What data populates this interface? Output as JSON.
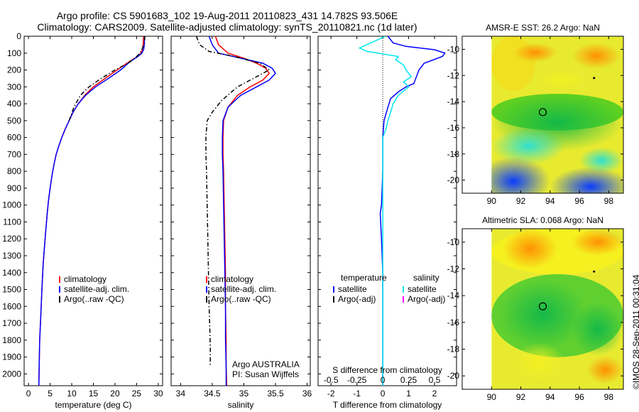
{
  "title": {
    "line1": "Argo profile: CS 5901683_102 19-Aug-2011 20110823_431 14.782S 93.506E",
    "line2": "Climatology: CARS2009. Satellite-adjusted climatology: synTS_20110821.nc (1d later)"
  },
  "stamp": "©IMOS 28-Sep-2011 00:31:04",
  "colors": {
    "climatology": "#ff0000",
    "satellite": "#0000ff",
    "argo": "#000000",
    "sal_satellite": "#00e5ee",
    "sal_argo": "#ff00ff"
  },
  "y_axis": {
    "ticks": [
      0,
      100,
      200,
      300,
      400,
      500,
      600,
      700,
      800,
      900,
      1000,
      1100,
      1200,
      1300,
      1400,
      1500,
      1600,
      1700,
      1800,
      1900,
      2000
    ],
    "ylim": [
      0,
      2070
    ]
  },
  "chart_data": [
    {
      "type": "line",
      "id": "temperature",
      "xlabel": "temperature (deg C)",
      "xlim": [
        -1,
        31
      ],
      "xticks": [
        "0",
        "5",
        "10",
        "15",
        "20",
        "25",
        "30"
      ],
      "xtick_values": [
        0,
        5,
        10,
        15,
        20,
        25,
        30
      ],
      "legend": [
        "climatology",
        "satellite-adj. clim.",
        "Argo(..raw -QC)"
      ],
      "series": [
        {
          "name": "climatology",
          "color": "#ff0000",
          "style": "solid",
          "x": [
            26.6,
            26.5,
            26.3,
            26.0,
            25.2,
            23.3,
            20.5,
            17.7,
            15.0,
            13.0,
            11.5,
            10.3,
            9.4,
            8.5,
            7.7,
            7.0,
            6.4,
            5.9,
            5.4,
            5.0,
            4.6,
            4.3,
            4.0,
            3.7,
            3.4,
            3.2,
            3.0,
            2.8,
            2.6,
            2.5,
            2.4
          ],
          "y": [
            0,
            50,
            80,
            100,
            120,
            150,
            200,
            250,
            300,
            350,
            400,
            450,
            500,
            550,
            600,
            650,
            700,
            760,
            830,
            900,
            980,
            1060,
            1150,
            1250,
            1350,
            1450,
            1560,
            1680,
            1800,
            1930,
            2070
          ]
        },
        {
          "name": "satellite-adj. clim.",
          "color": "#0000ff",
          "style": "solid",
          "x": [
            26.8,
            26.8,
            26.6,
            26.2,
            25.3,
            23.5,
            21.3,
            18.5,
            15.5,
            13.2,
            11.5,
            10.3,
            9.4,
            8.5,
            7.7,
            7.0,
            6.4,
            5.9,
            5.4,
            5.0,
            4.6,
            4.3,
            4.0,
            3.7,
            3.4,
            3.2,
            3.0,
            2.8,
            2.6,
            2.5,
            2.4
          ],
          "y": [
            0,
            50,
            80,
            100,
            120,
            150,
            200,
            250,
            300,
            350,
            400,
            450,
            500,
            550,
            600,
            650,
            700,
            760,
            830,
            900,
            980,
            1060,
            1150,
            1250,
            1350,
            1450,
            1560,
            1680,
            1800,
            1930,
            2070
          ]
        },
        {
          "name": "Argo(..raw -QC)",
          "color": "#000000",
          "style": "dashdot",
          "x": [
            26.9,
            26.8,
            26.5,
            26.2,
            25.8,
            24.6,
            23.0,
            20.0,
            16.8,
            14.0,
            12.0,
            10.5,
            9.4
          ],
          "y": [
            0,
            40,
            60,
            80,
            100,
            130,
            160,
            200,
            250,
            300,
            350,
            420,
            500
          ]
        }
      ]
    },
    {
      "type": "line",
      "id": "salinity",
      "xlabel": "salinity",
      "xlim": [
        33.85,
        36.05
      ],
      "xticks": [
        "34",
        "34.5",
        "35",
        "35.5",
        "36"
      ],
      "xtick_values": [
        34,
        34.5,
        35,
        35.5,
        36
      ],
      "legend": [
        "climatology",
        "satellite-adj. clim.",
        "Argo(..raw -QC)"
      ],
      "annotation": [
        "Argo AUSTRALIA",
        "PI: Susan Wijffels"
      ],
      "series": [
        {
          "name": "climatology",
          "color": "#ff0000",
          "style": "solid",
          "x": [
            34.55,
            34.6,
            34.75,
            35.0,
            35.2,
            35.35,
            35.4,
            35.3,
            35.1,
            34.9,
            34.75,
            34.68,
            34.67,
            34.67,
            34.68,
            34.69,
            34.7,
            34.71,
            34.71,
            34.72,
            34.72,
            34.73
          ],
          "y": [
            0,
            50,
            100,
            130,
            160,
            190,
            220,
            260,
            300,
            350,
            420,
            500,
            600,
            700,
            800,
            1000,
            1200,
            1400,
            1600,
            1800,
            1950,
            2070
          ]
        },
        {
          "name": "satellite-adj. clim.",
          "color": "#0000ff",
          "style": "solid",
          "x": [
            34.45,
            34.5,
            34.6,
            34.95,
            35.3,
            35.45,
            35.5,
            35.4,
            35.2,
            34.95,
            34.75,
            34.67,
            34.66,
            34.66,
            34.67,
            34.68,
            34.69,
            34.7,
            34.71,
            34.71,
            34.72,
            34.72
          ],
          "y": [
            0,
            50,
            100,
            130,
            160,
            190,
            220,
            260,
            300,
            350,
            420,
            500,
            600,
            700,
            800,
            1000,
            1200,
            1400,
            1600,
            1800,
            1950,
            2070
          ]
        },
        {
          "name": "Argo(..raw -QC)",
          "color": "#000000",
          "style": "dashdot",
          "x": [
            34.25,
            34.3,
            34.45,
            34.85,
            35.25,
            35.4,
            35.2,
            34.9,
            34.65,
            34.5,
            34.42,
            34.4,
            34.4,
            34.41,
            34.42,
            34.43,
            34.44,
            34.45,
            34.46,
            34.47,
            34.47
          ],
          "y": [
            0,
            50,
            90,
            120,
            160,
            200,
            240,
            300,
            380,
            450,
            500,
            600,
            700,
            800,
            1000,
            1200,
            1400,
            1600,
            1700,
            1850,
            1950
          ]
        }
      ]
    },
    {
      "type": "line",
      "id": "difference",
      "xlabel": "T difference from climatology",
      "xlabel_top": "S difference from climatology",
      "xlim": [
        -2.5,
        2.85
      ],
      "xticks": [
        "-2",
        "-1",
        "0",
        "1",
        "2"
      ],
      "xtick_values": [
        -2,
        -1,
        0,
        1,
        2
      ],
      "s_ticks": [
        "-0.5",
        "-0.25",
        "0",
        "0.25",
        "0.5"
      ],
      "s_tick_values": [
        -2,
        -1,
        0,
        1,
        2
      ],
      "legend_headers": [
        "temperature",
        "salinity"
      ],
      "legend_t": [
        "satellite",
        "Argo(-adj)"
      ],
      "legend_s": [
        "satellite",
        "Argo(-adj)"
      ],
      "series": [
        {
          "name": "satellite",
          "color": "#0000ff",
          "style": "solid",
          "x": [
            0.2,
            0.4,
            0.9,
            2.0,
            2.4,
            2.3,
            1.6,
            1.4,
            1.3,
            1.2,
            0.9,
            0.6,
            0.3,
            0.2,
            0.05,
            0.0,
            0.0,
            -0.05,
            -0.1,
            -0.05,
            0.0,
            0.0,
            0.0,
            0.0,
            0.0
          ],
          "y": [
            0,
            40,
            60,
            80,
            100,
            120,
            160,
            200,
            240,
            280,
            300,
            330,
            370,
            420,
            500,
            600,
            800,
            1000,
            1050,
            1200,
            1400,
            1600,
            1800,
            1950,
            2070
          ]
        },
        {
          "name": "satellite",
          "color": "#00e5ee",
          "style": "solid",
          "x": [
            0.1,
            -0.9,
            -0.6,
            0.6,
            0.5,
            0.8,
            0.9,
            1.1,
            0.8,
            1.0,
            0.6,
            0.4,
            0.3,
            0.2,
            0.1,
            0.0,
            0.0,
            0.0,
            0.0,
            0.0,
            0.0,
            0.0,
            0.0
          ],
          "y": [
            0,
            70,
            90,
            120,
            140,
            170,
            200,
            240,
            270,
            300,
            350,
            400,
            450,
            500,
            560,
            600,
            700,
            900,
            1100,
            1400,
            1700,
            1950,
            2070
          ]
        }
      ]
    }
  ],
  "maps": [
    {
      "id": "sst",
      "title": "AMSR-E SST: 26.2 Argo: NaN",
      "xticks": [
        "90",
        "92",
        "94",
        "96",
        "98"
      ],
      "yticks": [
        "-10",
        "-12",
        "-14",
        "-16",
        "-18",
        "-20"
      ]
    },
    {
      "id": "sla",
      "title": "Altimetric SLA: 0.068 Argo: NaN",
      "xticks": [
        "90",
        "92",
        "94",
        "96",
        "98"
      ],
      "yticks": [
        "-10",
        "-12",
        "-14",
        "-16",
        "-18",
        "-20"
      ]
    }
  ]
}
